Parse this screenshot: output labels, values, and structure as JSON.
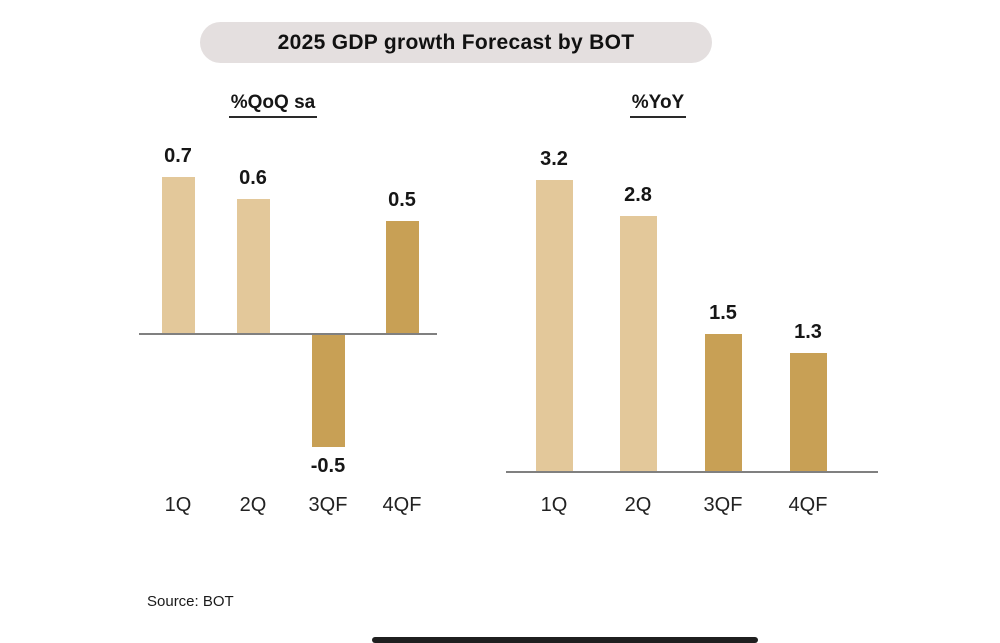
{
  "title": "2025 GDP growth Forecast by BOT",
  "source": "Source: BOT",
  "colors": {
    "light_bar": "#E3C89A",
    "dark_bar": "#C8A055",
    "axis": "#808080",
    "title_pill_bg": "#E4DFDF"
  },
  "chart_data": [
    {
      "type": "bar",
      "title": "%QoQ sa",
      "categories": [
        "1Q",
        "2Q",
        "3QF",
        "4QF"
      ],
      "values": [
        0.7,
        0.6,
        -0.5,
        0.5
      ],
      "value_labels": [
        "0.7",
        "0.6",
        "-0.5",
        "0.5"
      ],
      "bar_color_keys": [
        "light_bar",
        "light_bar",
        "dark_bar",
        "dark_bar"
      ],
      "ylim": [
        -0.7,
        0.8
      ],
      "grid": false,
      "legend": "none"
    },
    {
      "type": "bar",
      "title": "%YoY",
      "categories": [
        "1Q",
        "2Q",
        "3QF",
        "4QF"
      ],
      "values": [
        3.2,
        2.8,
        1.5,
        1.3
      ],
      "value_labels": [
        "3.2",
        "2.8",
        "1.5",
        "1.3"
      ],
      "bar_color_keys": [
        "light_bar",
        "light_bar",
        "dark_bar",
        "dark_bar"
      ],
      "ylim": [
        0,
        3.6
      ],
      "grid": false,
      "legend": "none"
    }
  ]
}
